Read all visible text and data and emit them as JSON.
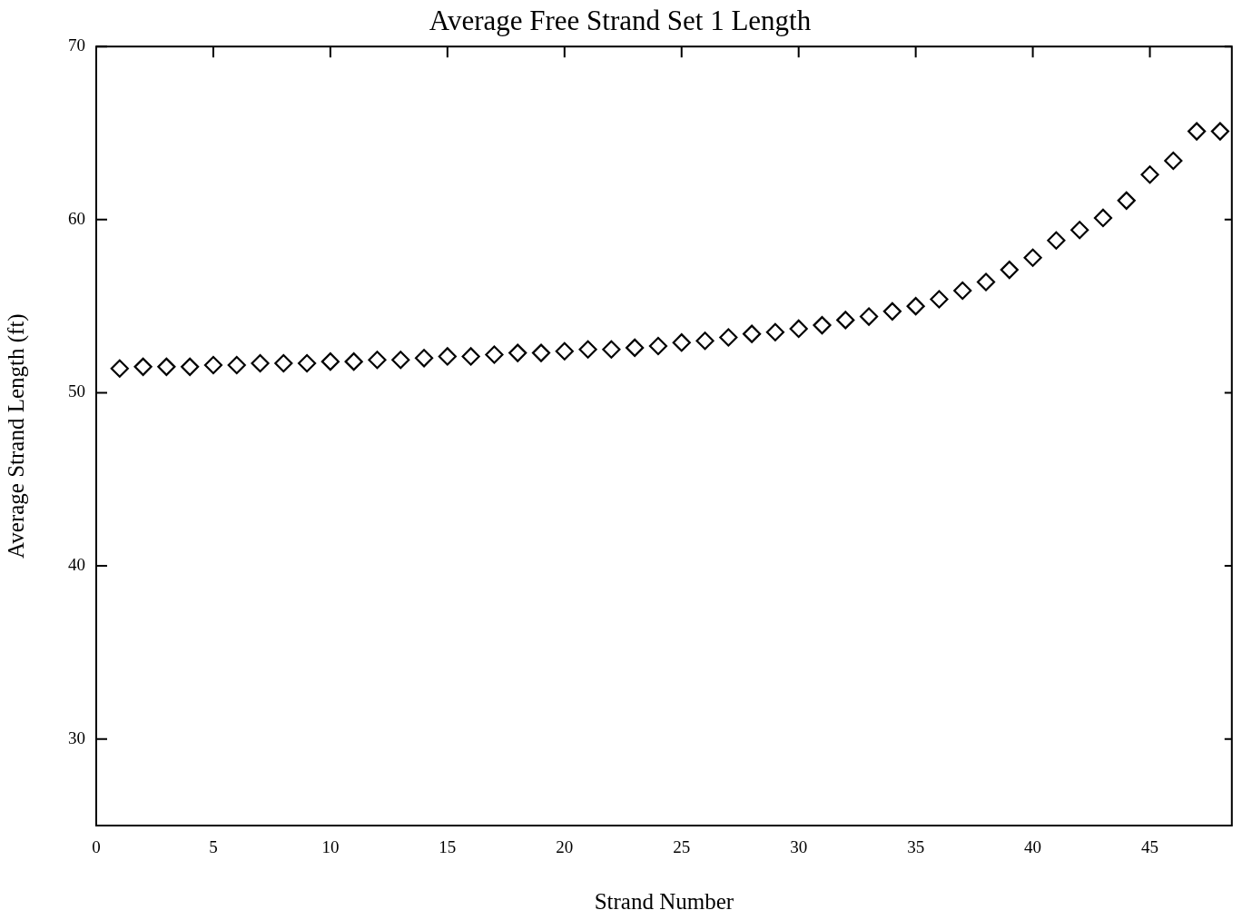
{
  "chart_data": {
    "type": "scatter",
    "title": "Average Free Strand Set 1 Length",
    "xlabel": "Strand Number",
    "ylabel": "Average Strand Length (ft)",
    "x": [
      1,
      2,
      3,
      4,
      5,
      6,
      7,
      8,
      9,
      10,
      11,
      12,
      13,
      14,
      15,
      16,
      17,
      18,
      19,
      20,
      21,
      22,
      23,
      24,
      25,
      26,
      27,
      28,
      29,
      30,
      31,
      32,
      33,
      34,
      35,
      36,
      37,
      38,
      39,
      40,
      41,
      42,
      43,
      44,
      45,
      46,
      47,
      48
    ],
    "series": [
      {
        "color": "#000000",
        "values": [
          51.4,
          51.5,
          51.5,
          51.5,
          51.6,
          51.6,
          51.7,
          51.7,
          51.7,
          51.8,
          51.8,
          51.9,
          51.9,
          52.0,
          52.1,
          52.1,
          52.2,
          52.3,
          52.3,
          52.4,
          52.5,
          52.5,
          52.6,
          52.7,
          52.9,
          53.0,
          53.2,
          53.4,
          53.5,
          53.7,
          53.9,
          54.2,
          54.4,
          54.7,
          55.0,
          55.4,
          55.9,
          56.4,
          57.1,
          57.8,
          58.8,
          59.4,
          60.1,
          61.1,
          62.6,
          63.4,
          65.1,
          65.1
        ]
      }
    ],
    "xlim": [
      0,
      48.5
    ],
    "xticks": [
      0,
      5,
      10,
      15,
      20,
      25,
      30,
      35,
      40,
      45
    ],
    "ylim": [
      25,
      70
    ],
    "yticks": [
      30,
      40,
      50,
      60,
      70
    ],
    "grid": false,
    "legend": false,
    "marker": "diamond"
  }
}
